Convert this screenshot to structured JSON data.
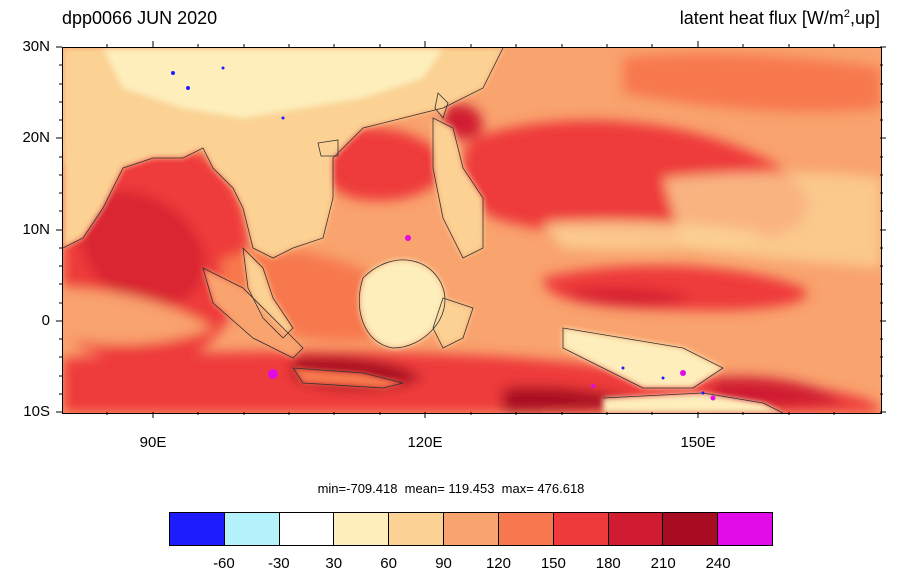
{
  "title_left": "dpp0066 JUN 2020",
  "title_right_main": "latent heat flux [W/m",
  "title_right_sup": "2",
  "title_right_tail": ",up]",
  "y_axis": {
    "labels": [
      "30N",
      "20N",
      "10N",
      "0",
      "10S"
    ],
    "values": [
      30,
      20,
      10,
      0,
      -10
    ]
  },
  "x_axis": {
    "labels": [
      "90E",
      "120E",
      "150E"
    ],
    "values": [
      90,
      120,
      150
    ]
  },
  "extent": {
    "lon_min": 80,
    "lon_max": 170,
    "lat_min": -10,
    "lat_max": 30
  },
  "stats_text": "min=-709.418  mean= 119.453  max= 476.618",
  "stats": {
    "min": -709.418,
    "mean": 119.453,
    "max": 476.618
  },
  "colorbar": {
    "colors": [
      "#1c1cff",
      "#b4f3fb",
      "#ffffff",
      "#fdeebb",
      "#fbd294",
      "#f9a36e",
      "#f7784e",
      "#ee3a3a",
      "#d01c30",
      "#a80c22",
      "#e10be8"
    ],
    "labels": [
      "-60",
      "-30",
      "30",
      "60",
      "90",
      "120",
      "150",
      "180",
      "210",
      "240"
    ]
  }
}
